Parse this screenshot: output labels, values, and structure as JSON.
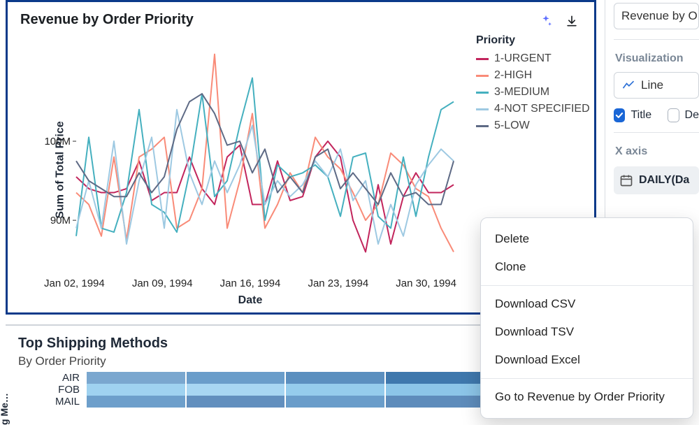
{
  "chart": {
    "title": "Revenue by Order Priority",
    "type": "line",
    "ylabel": "Sum of Total Price",
    "xlabel": "Date",
    "legend_title": "Priority",
    "x_ticks": [
      "Jan 02, 1994",
      "Jan 09, 1994",
      "Jan 16, 1994",
      "Jan 23, 1994",
      "Jan 30, 1994"
    ],
    "y_ticks": [
      {
        "v": 90,
        "label": "90M"
      },
      {
        "v": 100,
        "label": "100M"
      }
    ],
    "ylim": [
      84,
      113
    ],
    "xlim": [
      0,
      30
    ],
    "background_color": "#ffffff",
    "line_width": 2,
    "series": [
      {
        "name": "1-URGENT",
        "color": "#c2255c",
        "y": [
          95.5,
          94,
          93.5,
          93.5,
          94,
          97.5,
          92.5,
          93.5,
          93.5,
          98,
          94,
          92,
          98,
          99.5,
          92,
          92,
          97.5,
          92.5,
          93,
          98,
          100,
          98,
          90,
          86,
          94.5,
          87,
          93,
          96,
          93.5,
          93.5,
          94.5
        ]
      },
      {
        "name": "2-HIGH",
        "color": "#f98b78",
        "y": [
          93.5,
          92,
          88,
          98,
          87.5,
          98,
          99,
          100.5,
          89,
          90,
          94,
          111,
          89,
          95,
          103.5,
          89,
          92,
          96,
          93.5,
          100.5,
          98,
          96.5,
          93.5,
          90,
          92,
          98.5,
          97,
          94,
          93,
          89,
          86
        ]
      },
      {
        "name": "3-MEDIUM",
        "color": "#45b0bf",
        "y": [
          88,
          100.5,
          89,
          88.5,
          93.5,
          104,
          92,
          91,
          88.5,
          96,
          106,
          93,
          95,
          102,
          108,
          90,
          97,
          95.5,
          96,
          97,
          95.5,
          90.5,
          98,
          98.5,
          90.5,
          89,
          98,
          90.5,
          98,
          104,
          105
        ]
      },
      {
        "name": "4-NOT SPECIFIED",
        "color": "#9ec9e2",
        "y": [
          89,
          95,
          89,
          100,
          87,
          95,
          100.5,
          89,
          104,
          96,
          92,
          97.5,
          93.5,
          97,
          102,
          92,
          95,
          93,
          94.5,
          97.5,
          95.5,
          99,
          92.5,
          95,
          87,
          92,
          88,
          94.5,
          97,
          99,
          97.5
        ]
      },
      {
        "name": "5-LOW",
        "color": "#5e6a85",
        "y": [
          97.5,
          95,
          94,
          93,
          93,
          96,
          93.5,
          95.5,
          101.5,
          105,
          106,
          103.5,
          99.5,
          100,
          96,
          99,
          93.5,
          95.5,
          93.5,
          98,
          99,
          94,
          96,
          94,
          92,
          96,
          93,
          93.5,
          92,
          92,
          97.5
        ]
      }
    ]
  },
  "shipping": {
    "title": "Top Shipping Methods",
    "subtitle": "By Order Priority",
    "ylabel_trunc": "g Me…",
    "rows": [
      {
        "label": "AIR",
        "cells": [
          "#7aa7cf",
          "#6a9dca",
          "#5b8fbf",
          "#3f78ad",
          "#5489ba"
        ]
      },
      {
        "label": "FOB",
        "cells": [
          "#9fd2f0",
          "#a8d6f2",
          "#95ccec",
          "#8cc5e8",
          "#9fd2f0"
        ]
      },
      {
        "label": "MAIL",
        "cells": [
          "#6d9fcb",
          "#628fbe",
          "#6a9dca",
          "#5e8cbb",
          "#7aa7cf"
        ]
      }
    ]
  },
  "sidebar": {
    "search_text": "Revenue by O",
    "section_viz": "Visualization",
    "viz_value": "Line",
    "title_chk_label": "Title",
    "second_chk_label": "De",
    "section_x": "X axis",
    "x_pill": "DAILY(Da"
  },
  "menu": {
    "items_a": [
      "Delete",
      "Clone"
    ],
    "items_b": [
      "Download CSV",
      "Download TSV",
      "Download Excel"
    ],
    "items_c": [
      "Go to Revenue by Order Priority"
    ]
  },
  "icons": {
    "sparkle_color": "#5b6cff",
    "download_color": "#1b1f23"
  }
}
